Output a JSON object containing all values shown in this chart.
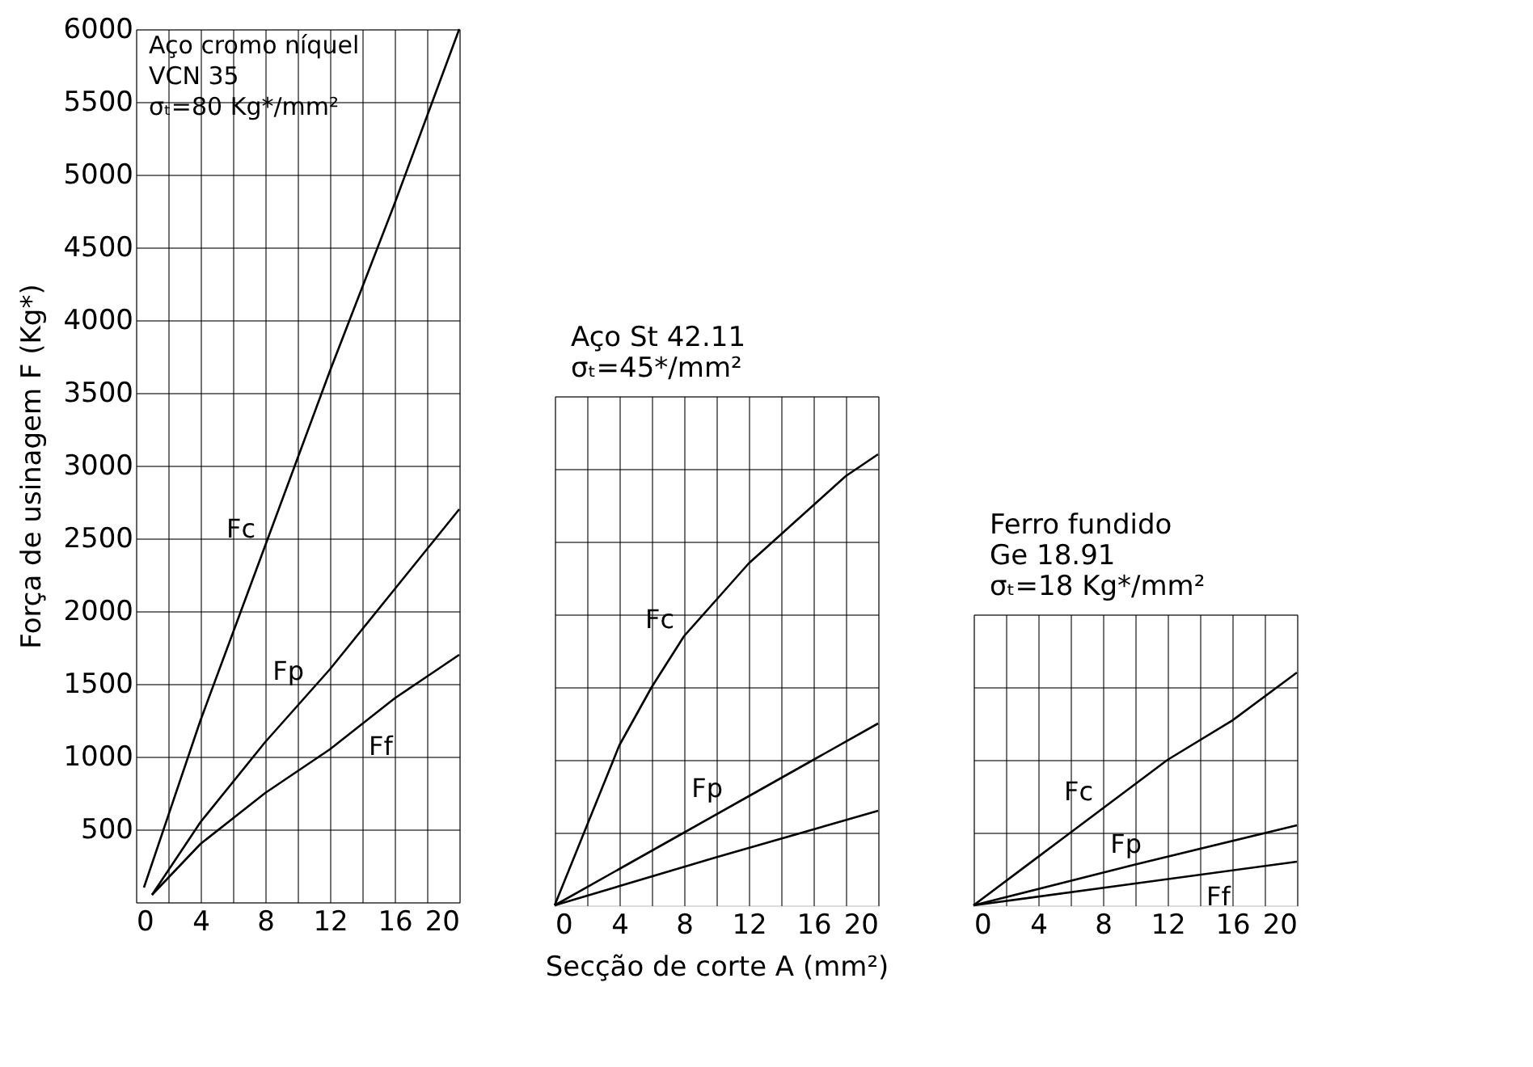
{
  "chart_data": [
    {
      "type": "line",
      "title": "Aço cromo níquel",
      "subtitle": "VCN 35\nσₜ=80 Kg*/mm²",
      "ylabel": "Força de usinagem F (Kg*)",
      "xlim": [
        0,
        20
      ],
      "ylim": [
        0,
        6000
      ],
      "xticks": [
        0,
        {
          "value": 2,
          "label": null
        },
        4,
        {
          "value": 6,
          "label": null
        },
        8,
        {
          "value": 10,
          "label": null
        },
        12,
        {
          "value": 14,
          "label": null
        },
        16,
        {
          "value": 18,
          "label": null
        },
        20
      ],
      "yticks": [
        {
          "value": 0,
          "label": null
        },
        500,
        1000,
        1500,
        2000,
        2500,
        3000,
        3500,
        4000,
        4500,
        5000,
        5500,
        6000
      ],
      "grid": true,
      "series": [
        {
          "name": "Fc",
          "color": "#000000",
          "x": [
            0.5,
            4,
            8,
            12,
            16,
            20
          ],
          "values": [
            100,
            1250,
            2450,
            3650,
            4800,
            6000
          ]
        },
        {
          "name": "Fp",
          "color": "#000000",
          "x": [
            1,
            4,
            8,
            12,
            16,
            20
          ],
          "values": [
            50,
            550,
            1100,
            1600,
            2150,
            2700
          ]
        },
        {
          "name": "Ff",
          "color": "#000000",
          "x": [
            1,
            4,
            8,
            12,
            16,
            20
          ],
          "values": [
            50,
            400,
            750,
            1050,
            1400,
            1700
          ]
        }
      ]
    },
    {
      "type": "line",
      "title": "Aço St 42.11",
      "subtitle": "σₜ=45*/mm²",
      "xlabel": "Secção de corte A (mm²)",
      "xlim": [
        0,
        20
      ],
      "ylim": [
        0,
        3500
      ],
      "tick_labels": "x",
      "xticks": [
        0,
        {
          "value": 2,
          "label": null
        },
        4,
        {
          "value": 6,
          "label": null
        },
        8,
        {
          "value": 10,
          "label": null
        },
        12,
        {
          "value": 14,
          "label": null
        },
        16,
        {
          "value": 18,
          "label": null
        },
        20
      ],
      "yticks": [
        500,
        1000,
        1500,
        2000,
        2500,
        3000,
        3500
      ],
      "grid": true,
      "series": [
        {
          "name": "Fc",
          "color": "#000000",
          "x": [
            0,
            2,
            4,
            6,
            8,
            10,
            12,
            14,
            16,
            18,
            20
          ],
          "values": [
            0,
            550,
            1100,
            1500,
            1850,
            2100,
            2350,
            2550,
            2750,
            2950,
            3100
          ]
        },
        {
          "name": "Fp",
          "color": "#000000",
          "x": [
            0,
            4,
            8,
            12,
            16,
            20
          ],
          "values": [
            0,
            250,
            500,
            750,
            1000,
            1250
          ]
        },
        {
          "color": "#000000",
          "x": [
            0,
            10,
            20
          ],
          "values": [
            0,
            330,
            650
          ]
        }
      ]
    },
    {
      "type": "line",
      "title": "Ferro fundido",
      "subtitle": "Ge 18.91\nσₜ=18 Kg*/mm²",
      "xlim": [
        0,
        20
      ],
      "ylim": [
        0,
        2000
      ],
      "tick_labels": "x",
      "xticks": [
        0,
        {
          "value": 2,
          "label": null
        },
        4,
        {
          "value": 6,
          "label": null
        },
        8,
        {
          "value": 10,
          "label": null
        },
        12,
        {
          "value": 14,
          "label": null
        },
        16,
        {
          "value": 18,
          "label": null
        },
        20
      ],
      "yticks": [
        500,
        1000,
        1500,
        2000
      ],
      "grid": true,
      "series": [
        {
          "name": "Fc",
          "color": "#000000",
          "x": [
            0,
            6,
            12,
            16,
            20
          ],
          "values": [
            0,
            500,
            1000,
            1270,
            1600
          ]
        },
        {
          "name": "Fp",
          "color": "#000000",
          "x": [
            0,
            10,
            20
          ],
          "values": [
            0,
            280,
            550
          ]
        },
        {
          "name": "Ff",
          "color": "#000000",
          "x": [
            0,
            10,
            20
          ],
          "values": [
            0,
            150,
            300
          ]
        }
      ]
    }
  ]
}
